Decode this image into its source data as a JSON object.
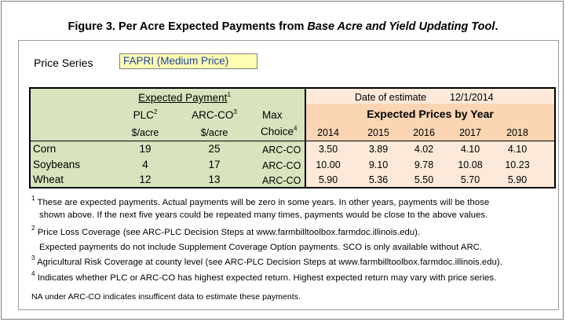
{
  "title": {
    "prefix": "Figure 3. Per Acre Expected Payments from ",
    "italic": "Base Acre and Yield Updating Tool",
    "suffix": "."
  },
  "price_series": {
    "label": "Price Series",
    "value": "FAPRI (Medium Price)"
  },
  "header": {
    "expected_payment": "Expected Payment",
    "expected_payment_sup": "1",
    "plc": "PLC",
    "plc_sup": "2",
    "arcco": "ARC-CO",
    "arcco_sup": "3",
    "max": "Max",
    "choice": "Choice",
    "choice_sup": "4",
    "unit_plc": "$/acre",
    "unit_arc": "$/acre",
    "date_label": "Date of estimate",
    "date_value": "12/1/2014",
    "expected_prices": "Expected Prices by Year",
    "years": [
      "2014",
      "2015",
      "2016",
      "2017",
      "2018"
    ]
  },
  "rows": [
    {
      "crop": "Corn",
      "plc": "19",
      "arcco": "25",
      "choice": "ARC-CO",
      "prices": [
        "3.50",
        "3.89",
        "4.02",
        "4.10",
        "4.10"
      ]
    },
    {
      "crop": "Soybeans",
      "plc": "4",
      "arcco": "17",
      "choice": "ARC-CO",
      "prices": [
        "10.00",
        "9.10",
        "9.78",
        "10.08",
        "10.23"
      ]
    },
    {
      "crop": "Wheat",
      "plc": "12",
      "arcco": "13",
      "choice": "ARC-CO",
      "prices": [
        "5.90",
        "5.36",
        "5.50",
        "5.70",
        "5.90"
      ]
    }
  ],
  "footnotes": {
    "n1_sup": "1",
    "n1_a": "These are expected payments. Actual payments will be zero in some years. In other years, payments will be those",
    "n1_b": "shown above. If the next five years could be repeated many times, payments would be close to the above values.",
    "n2_sup": "2",
    "n2_a": "Price Loss Coverage (see ARC-PLC Decision Steps at www.farmbilltoolbox.farmdoc.illinois.edu).",
    "n2_b": "Expected payments do not include Supplement Coverage Option payments. SCO is only available without ARC.",
    "n3_sup": "3",
    "n3": "Agricultural Risk Coverage at county level (see ARC-PLC Decision Steps at www.farmbilltoolbox.farmdoc.illinois.edu).",
    "n4_sup": "4",
    "n4": "Indicates whether PLC or ARC-CO has highest expected return. Highest expected return may vary with price series.",
    "na": "NA under ARC-CO indicates insufficent data to estimate these payments."
  }
}
